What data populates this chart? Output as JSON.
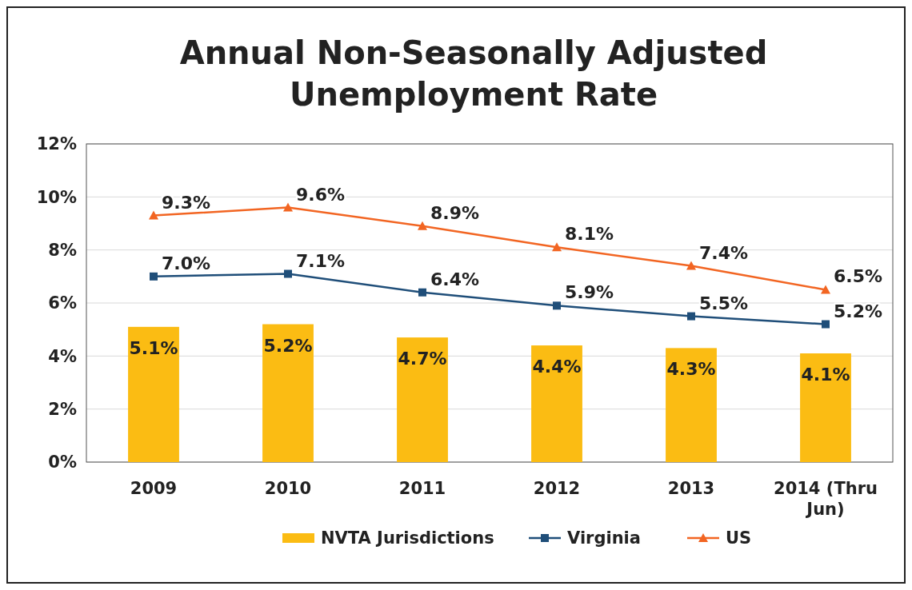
{
  "chart_data": {
    "type": "bar",
    "title": "Annual Non-Seasonally Adjusted Unemployment Rate",
    "categories": [
      "2009",
      "2010",
      "2011",
      "2012",
      "2013",
      "2014 (Thru Jun)"
    ],
    "series": [
      {
        "name": "NVTA Jurisdictions",
        "color": "#fbbc13",
        "values": [
          5.1,
          5.2,
          4.7,
          4.4,
          4.3,
          4.1
        ],
        "value_labels": [
          "5.1%",
          "5.2%",
          "4.7%",
          "4.4%",
          "4.3%",
          "4.1%"
        ]
      },
      {
        "name": "Virginia",
        "type": "line",
        "color": "#1f4e79",
        "marker": "square",
        "values": [
          7.0,
          7.1,
          6.4,
          5.9,
          5.5,
          5.2
        ],
        "value_labels": [
          "7.0%",
          "7.1%",
          "6.4%",
          "5.9%",
          "5.5%",
          "5.2%"
        ]
      },
      {
        "name": "US",
        "type": "line",
        "color": "#f26522",
        "marker": "triangle",
        "values": [
          9.3,
          9.6,
          8.9,
          8.1,
          7.4,
          6.5
        ],
        "value_labels": [
          "9.3%",
          "9.6%",
          "8.9%",
          "8.1%",
          "7.4%",
          "6.5%"
        ]
      }
    ],
    "ylim": [
      0,
      12
    ],
    "yticks": [
      {
        "value": 0,
        "label": "0%"
      },
      {
        "value": 2,
        "label": "2%"
      },
      {
        "value": 4,
        "label": "4%"
      },
      {
        "value": 6,
        "label": "6%"
      },
      {
        "value": 8,
        "label": "8%"
      },
      {
        "value": 10,
        "label": "10%"
      },
      {
        "value": 12,
        "label": "12%"
      }
    ],
    "grid": "y",
    "legend": "bottom",
    "line_style": "solid"
  }
}
